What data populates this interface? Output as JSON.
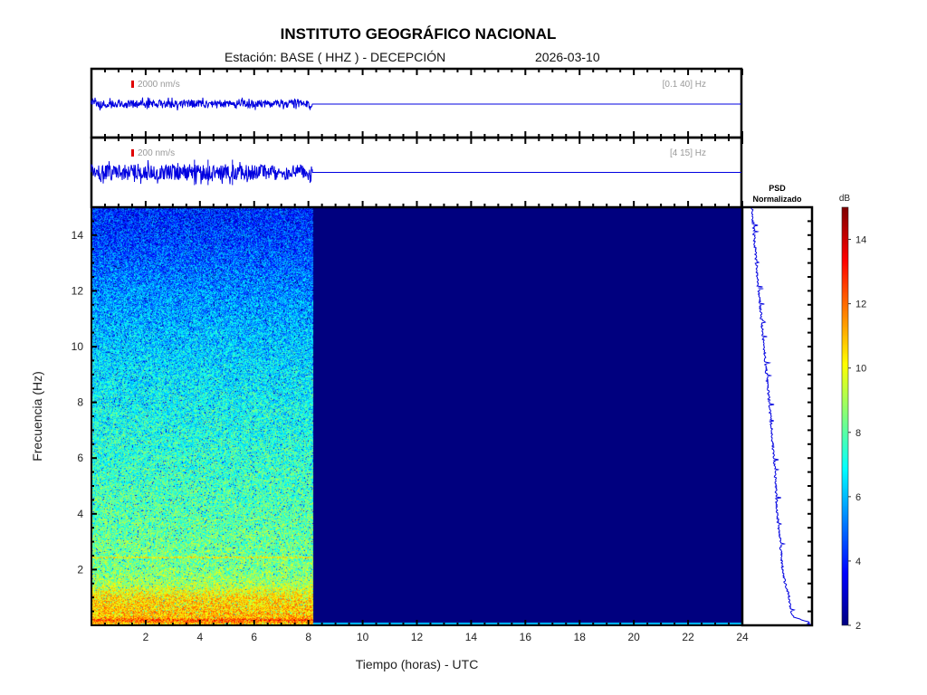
{
  "header": {
    "title": "INSTITUTO GEOGRÁFICO NACIONAL",
    "station": "Estación:  BASE ( HHZ ) - DECEPCIÓN",
    "date": "2026-03-10"
  },
  "traces": [
    {
      "scale_label": "2000 nm/s",
      "band_label": "[0.1 40] Hz",
      "amplitude": 0.12
    },
    {
      "scale_label": "200 nm/s",
      "band_label": "[4 15] Hz",
      "amplitude": 0.22,
      "spikes_hours": [
        3.8,
        4.3,
        5.2
      ]
    }
  ],
  "psd": {
    "title_line1": "PSD",
    "title_line2": "Normalizado"
  },
  "colorbar": {
    "label": "dB",
    "min": 2,
    "max": 15,
    "ticks": [
      2,
      4,
      6,
      8,
      10,
      12,
      14
    ]
  },
  "colors": {
    "trace": "#0000e0",
    "scale_marker": "#e00000",
    "no_data": "#00008f"
  },
  "chart_data": {
    "type": "heatmap",
    "title": "INSTITUTO GEOGRÁFICO NACIONAL",
    "xlabel": "Tiempo (horas) - UTC",
    "ylabel": "Frecuencia  (Hz)",
    "xlim": [
      0,
      24
    ],
    "ylim": [
      0,
      15
    ],
    "xticks": [
      2,
      4,
      6,
      8,
      10,
      12,
      14,
      16,
      18,
      20,
      22,
      24
    ],
    "yticks": [
      2,
      4,
      6,
      8,
      10,
      12,
      14
    ],
    "data_end_hour": 8.15,
    "db_profile": {
      "freq_hz": [
        0,
        0.2,
        0.3,
        1,
        1.5,
        2,
        4,
        6,
        8,
        10,
        12,
        14,
        15
      ],
      "db": [
        10,
        12.5,
        11,
        10.5,
        9,
        8.5,
        8,
        7.5,
        7,
        6.3,
        5.5,
        4.5,
        4.2
      ]
    },
    "psd_profile": {
      "freq_hz": [
        0.05,
        0.1,
        0.3,
        0.6,
        1,
        1.5,
        2,
        3,
        4,
        5,
        6,
        8,
        10,
        12,
        12.5,
        14,
        15
      ],
      "normalized": [
        0.95,
        1.0,
        0.75,
        0.7,
        0.68,
        0.62,
        0.58,
        0.55,
        0.5,
        0.48,
        0.45,
        0.38,
        0.3,
        0.22,
        0.2,
        0.15,
        0.12
      ]
    }
  }
}
